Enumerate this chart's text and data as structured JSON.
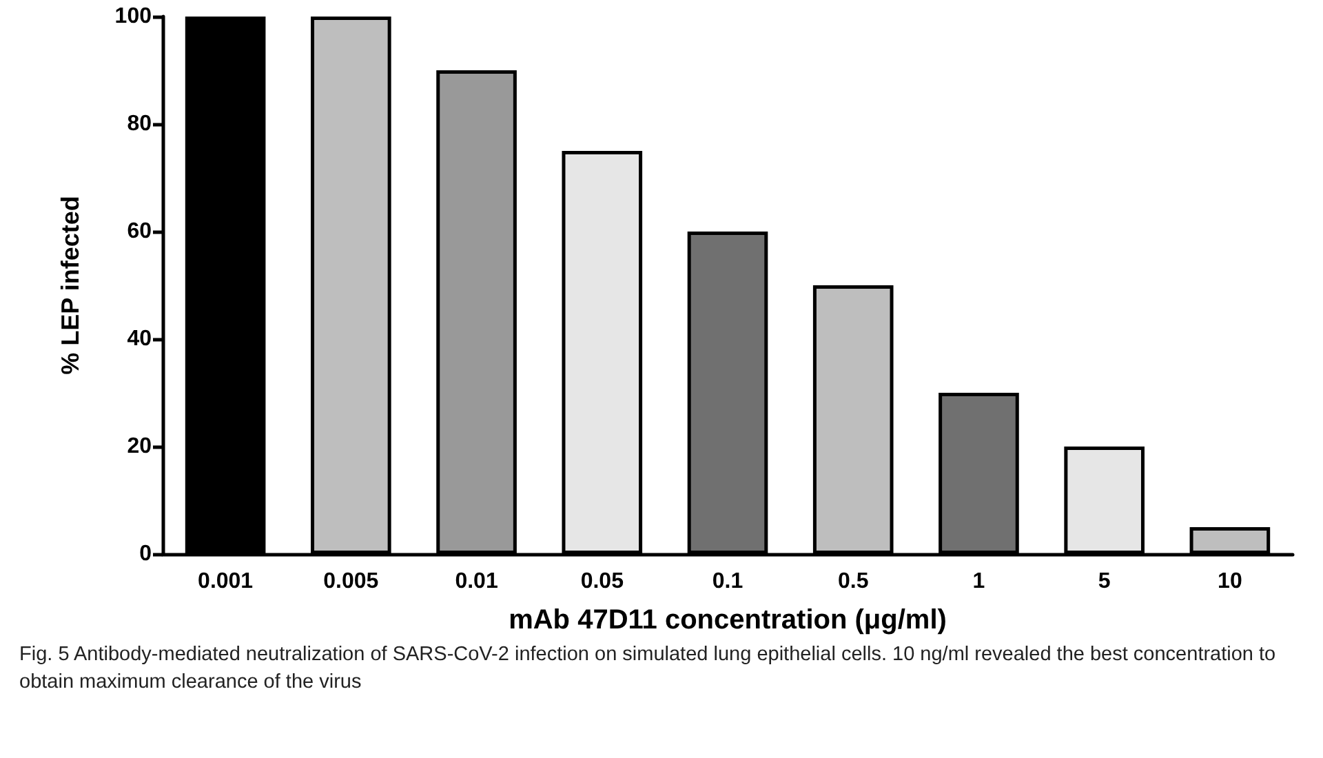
{
  "chart_data": {
    "type": "bar",
    "categories": [
      "0.001",
      "0.005",
      "0.01",
      "0.05",
      "0.1",
      "0.5",
      "1",
      "5",
      "10"
    ],
    "values": [
      100,
      100,
      90,
      75,
      60,
      50,
      30,
      20,
      5
    ],
    "colors": [
      "#000000",
      "#bebebe",
      "#999999",
      "#e6e6e6",
      "#707070",
      "#bebebe",
      "#707070",
      "#e6e6e6",
      "#bebebe"
    ],
    "xlabel": "mAb 47D11 concentration (μg/ml)",
    "ylabel": "% LEP infected",
    "ylim": [
      0,
      100
    ],
    "yticks": [
      0,
      20,
      40,
      60,
      80,
      100
    ],
    "grid": false,
    "annotations": [
      "Fig. 5  Antibody-mediated neutralization of SARS-CoV-2 infection on simulated lung epithelial cells. 10 ng/ml revealed the best concentration to obtain maximum clearance of the virus"
    ]
  }
}
